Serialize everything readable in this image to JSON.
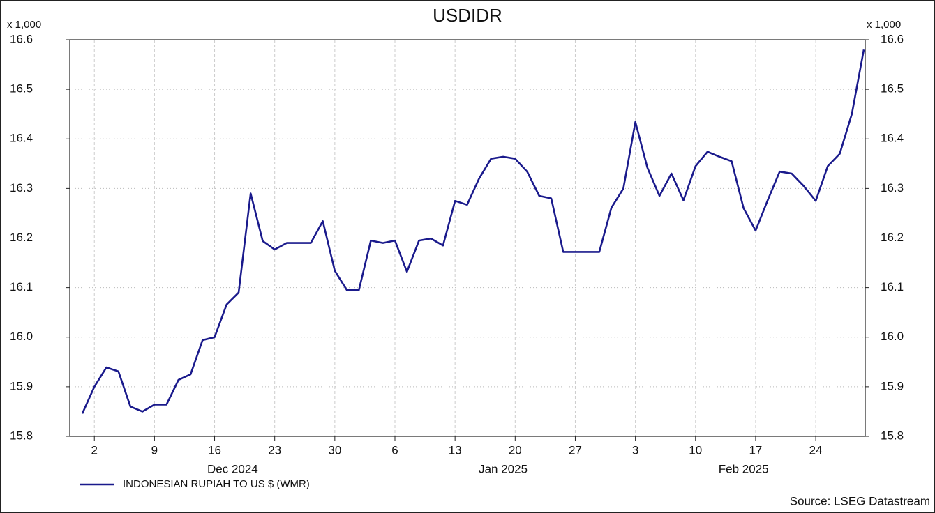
{
  "chart_data": {
    "type": "line",
    "title": "USDIDR",
    "y_unit_label": "x 1,000",
    "source": "Source: LSEG Datastream",
    "months": [
      "Dec 2024",
      "Jan 2025",
      "Feb 2025"
    ],
    "categories": [
      null,
      "2",
      null,
      null,
      null,
      null,
      "9",
      null,
      null,
      null,
      null,
      "16",
      null,
      null,
      null,
      null,
      "23",
      null,
      null,
      null,
      null,
      "30",
      null,
      null,
      null,
      null,
      "6",
      null,
      null,
      null,
      null,
      "13",
      null,
      null,
      null,
      null,
      "20",
      null,
      null,
      null,
      null,
      "27",
      null,
      null,
      null,
      null,
      "3",
      null,
      null,
      null,
      null,
      "10",
      null,
      null,
      null,
      null,
      "17",
      null,
      null,
      null,
      null,
      "24",
      null,
      null,
      null,
      null
    ],
    "series": [
      {
        "name": "INDONESIAN RUPIAH TO US $ (WMR)",
        "color": "#1a1a8c",
        "values": [
          15.846,
          15.9,
          15.939,
          15.931,
          15.86,
          15.85,
          15.864,
          15.864,
          15.914,
          15.925,
          15.994,
          16.0,
          16.066,
          16.09,
          16.29,
          16.194,
          16.177,
          16.19,
          16.19,
          16.19,
          16.234,
          16.134,
          16.095,
          16.095,
          16.195,
          16.19,
          16.195,
          16.132,
          16.195,
          16.199,
          16.185,
          16.275,
          16.267,
          16.32,
          16.36,
          16.364,
          16.36,
          16.334,
          16.285,
          16.28,
          16.172,
          16.172,
          16.172,
          16.172,
          16.261,
          16.3,
          16.434,
          16.342,
          16.285,
          16.33,
          16.276,
          16.345,
          16.374,
          16.364,
          16.355,
          16.26,
          16.215,
          16.276,
          16.334,
          16.33,
          16.305,
          16.275,
          16.345,
          16.37,
          16.45,
          16.58
        ]
      }
    ],
    "ylim": [
      15.8,
      16.6
    ],
    "yticks": [
      15.8,
      15.9,
      {
        "value": 16,
        "label": "16.0"
      },
      16.1,
      16.2,
      16.3,
      16.4,
      16.5,
      16.6
    ],
    "grid": true,
    "legend": "bottom-left"
  }
}
